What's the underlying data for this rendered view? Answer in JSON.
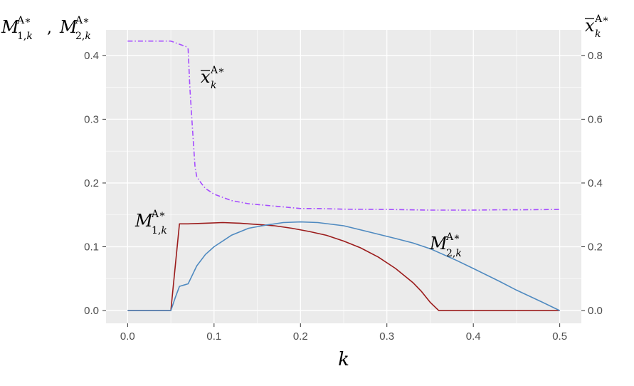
{
  "chart_data": {
    "type": "line",
    "xlabel": "k",
    "ylabel_left": "M1,kA*, M2,kA*",
    "ylabel_right": "x̄kA*",
    "xlim": [
      -0.025,
      0.525
    ],
    "ylim_left": [
      -0.02,
      0.44
    ],
    "ylim_right": [
      -0.04,
      0.88
    ],
    "x_ticks": [
      0.0,
      0.1,
      0.2,
      0.3,
      0.4,
      0.5
    ],
    "x_tick_labels": [
      "0.0",
      "0.1",
      "0.2",
      "0.3",
      "0.4",
      "0.5"
    ],
    "y_left_ticks": [
      0.0,
      0.1,
      0.2,
      0.3,
      0.4
    ],
    "y_left_tick_labels": [
      "0.0",
      "0.1",
      "0.2",
      "0.3",
      "0.4"
    ],
    "y_right_ticks": [
      0.0,
      0.2,
      0.4,
      0.6,
      0.8
    ],
    "y_right_tick_labels": [
      "0.0",
      "0.2",
      "0.4",
      "0.6",
      "0.8"
    ],
    "grid": true,
    "background": "#ebebeb",
    "series": [
      {
        "key": "M1",
        "name": "M1,kA*",
        "axis": "left",
        "color": "#9b1b1b",
        "dash": "solid",
        "x": [
          0,
          0.05,
          0.06,
          0.07,
          0.09,
          0.11,
          0.13,
          0.15,
          0.17,
          0.19,
          0.21,
          0.23,
          0.25,
          0.27,
          0.29,
          0.31,
          0.33,
          0.34,
          0.35,
          0.36,
          0.4,
          0.45,
          0.5
        ],
        "y": [
          0,
          0,
          0.136,
          0.136,
          0.137,
          0.138,
          0.137,
          0.135,
          0.133,
          0.129,
          0.124,
          0.118,
          0.109,
          0.098,
          0.084,
          0.066,
          0.044,
          0.03,
          0.013,
          0.0,
          0,
          0,
          0
        ]
      },
      {
        "key": "M2",
        "name": "M2,kA*",
        "axis": "left",
        "color": "#4f8ac0",
        "dash": "solid",
        "x": [
          0,
          0.05,
          0.055,
          0.06,
          0.065,
          0.07,
          0.08,
          0.09,
          0.1,
          0.12,
          0.14,
          0.16,
          0.18,
          0.2,
          0.22,
          0.25,
          0.28,
          0.31,
          0.33,
          0.35,
          0.38,
          0.4,
          0.43,
          0.45,
          0.48,
          0.5
        ],
        "y": [
          0,
          0,
          0.02,
          0.038,
          0.04,
          0.042,
          0.07,
          0.088,
          0.1,
          0.118,
          0.129,
          0.134,
          0.138,
          0.139,
          0.138,
          0.133,
          0.123,
          0.113,
          0.106,
          0.097,
          0.079,
          0.066,
          0.046,
          0.032,
          0.013,
          0
        ]
      },
      {
        "key": "xbar",
        "name": "x̄kA*",
        "axis": "right",
        "color": "#a64dff",
        "dash": "dashdot",
        "x": [
          0,
          0.05,
          0.068,
          0.07,
          0.072,
          0.075,
          0.078,
          0.08,
          0.085,
          0.09,
          0.1,
          0.12,
          0.14,
          0.16,
          0.18,
          0.2,
          0.22,
          0.25,
          0.3,
          0.35,
          0.38,
          0.4,
          0.43,
          0.45,
          0.5
        ],
        "y": [
          0.845,
          0.845,
          0.827,
          0.82,
          0.7,
          0.57,
          0.45,
          0.42,
          0.4,
          0.383,
          0.365,
          0.345,
          0.335,
          0.33,
          0.325,
          0.32,
          0.32,
          0.318,
          0.317,
          0.315,
          0.315,
          0.315,
          0.316,
          0.316,
          0.317
        ]
      }
    ]
  }
}
